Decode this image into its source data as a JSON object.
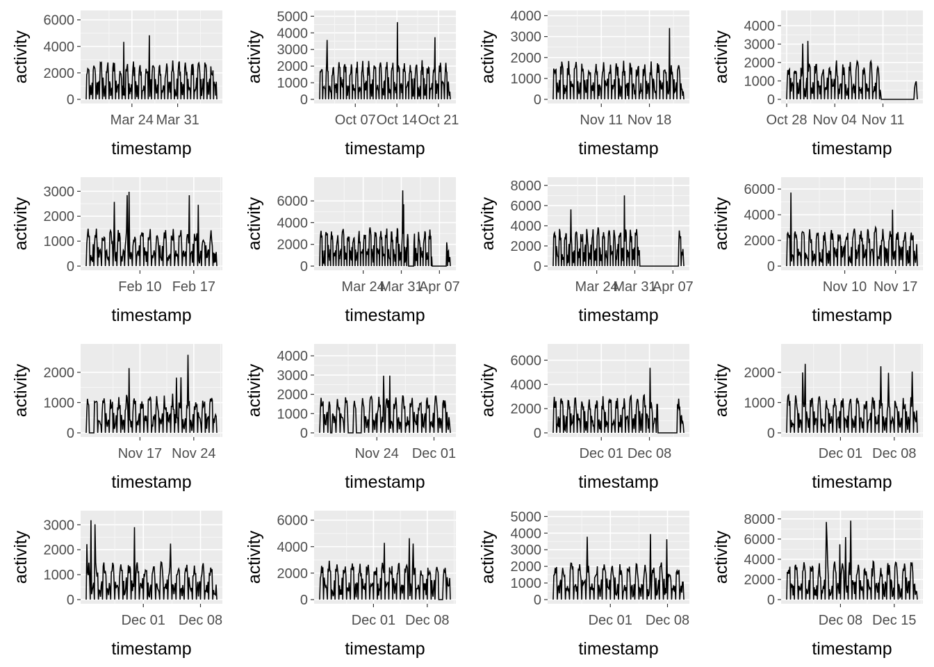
{
  "chart_data": [
    {
      "type": "bar",
      "xlabel": "timestamp",
      "ylabel": "activity",
      "x_ticks": [
        "Mar 24",
        "Mar 31"
      ],
      "y_ticks": [
        0,
        2000,
        4000,
        6000
      ],
      "ylim": [
        0,
        6400
      ],
      "x_range_days": [
        "2019-03-17",
        "2019-04-06"
      ],
      "gap_days": []
    },
    {
      "type": "bar",
      "xlabel": "timestamp",
      "ylabel": "activity",
      "x_ticks": [
        "Oct 07",
        "Oct 14",
        "Oct 21"
      ],
      "y_ticks": [
        0,
        1000,
        2000,
        3000,
        4000,
        5000
      ],
      "ylim": [
        0,
        5100
      ],
      "x_range_days": [
        "2018-10-01",
        "2018-10-23"
      ],
      "gap_days": []
    },
    {
      "type": "bar",
      "xlabel": "timestamp",
      "ylabel": "activity",
      "x_ticks": [
        "Nov 11",
        "Nov 18"
      ],
      "y_ticks": [
        0,
        1000,
        2000,
        3000,
        4000
      ],
      "ylim": [
        0,
        4050
      ],
      "x_range_days": [
        "2018-11-04",
        "2018-11-23"
      ],
      "gap_days": []
    },
    {
      "type": "bar",
      "xlabel": "timestamp",
      "ylabel": "activity",
      "x_ticks": [
        "Oct 28",
        "Nov 04",
        "Nov 11"
      ],
      "y_ticks": [
        0,
        1000,
        2000,
        3000,
        4000
      ],
      "ylim": [
        0,
        4600
      ],
      "x_range_days": [
        "2018-10-28",
        "2018-11-16"
      ],
      "gap_days": [
        [
          0.72,
          0.97
        ]
      ]
    },
    {
      "type": "bar",
      "xlabel": "timestamp",
      "ylabel": "activity",
      "x_ticks": [
        "Feb 10",
        "Feb 17"
      ],
      "y_ticks": [
        0,
        1000,
        2000,
        3000
      ],
      "ylim": [
        0,
        3400
      ],
      "x_range_days": [
        "2019-02-03",
        "2019-02-20"
      ],
      "gap_days": []
    },
    {
      "type": "bar",
      "xlabel": "timestamp",
      "ylabel": "activity",
      "x_ticks": [
        "Mar 24",
        "Mar 31",
        "Apr 07"
      ],
      "y_ticks": [
        0,
        2000,
        4000,
        6000
      ],
      "ylim": [
        0,
        7800
      ],
      "x_range_days": [
        "2019-03-16",
        "2019-04-09"
      ],
      "gap_days": [
        [
          0.68,
          0.72
        ],
        [
          0.86,
          0.97
        ]
      ]
    },
    {
      "type": "bar",
      "xlabel": "timestamp",
      "ylabel": "activity",
      "x_ticks": [
        "Mar 24",
        "Mar 31",
        "Apr 07"
      ],
      "y_ticks": [
        0,
        2000,
        4000,
        6000,
        8000
      ],
      "ylim": [
        0,
        8400
      ],
      "x_range_days": [
        "2019-03-16",
        "2019-04-09"
      ],
      "gap_days": [
        [
          0.66,
          0.96
        ]
      ]
    },
    {
      "type": "bar",
      "xlabel": "timestamp",
      "ylabel": "activity",
      "x_ticks": [
        "Nov 10",
        "Nov 17"
      ],
      "y_ticks": [
        0,
        2000,
        4000,
        6000
      ],
      "ylim": [
        0,
        6600
      ],
      "x_range_days": [
        "2018-11-02",
        "2018-11-20"
      ],
      "gap_days": []
    },
    {
      "type": "bar",
      "xlabel": "timestamp",
      "ylabel": "activity",
      "x_ticks": [
        "Nov 17",
        "Nov 24"
      ],
      "y_ticks": [
        0,
        1000,
        2000
      ],
      "ylim": [
        0,
        2800
      ],
      "x_range_days": [
        "2018-11-10",
        "2018-11-27"
      ],
      "gap_days": [
        [
          0.02,
          0.06
        ]
      ]
    },
    {
      "type": "bar",
      "xlabel": "timestamp",
      "ylabel": "activity",
      "x_ticks": [
        "Nov 24",
        "Dec 01"
      ],
      "y_ticks": [
        0,
        1000,
        2000,
        3000,
        4000
      ],
      "ylim": [
        0,
        4400
      ],
      "x_range_days": [
        "2018-11-17",
        "2018-12-03"
      ],
      "gap_days": [
        [
          0.08,
          0.09
        ],
        [
          0.22,
          0.26
        ],
        [
          0.28,
          0.32
        ]
      ]
    },
    {
      "type": "bar",
      "xlabel": "timestamp",
      "ylabel": "activity",
      "x_ticks": [
        "Dec 01",
        "Dec 08"
      ],
      "y_ticks": [
        0,
        2000,
        4000,
        6000
      ],
      "ylim": [
        0,
        7000
      ],
      "x_range_days": [
        "2018-11-24",
        "2018-12-13"
      ],
      "gap_days": [
        [
          0.8,
          0.95
        ]
      ]
    },
    {
      "type": "bar",
      "xlabel": "timestamp",
      "ylabel": "activity",
      "x_ticks": [
        "Dec 01",
        "Dec 08"
      ],
      "y_ticks": [
        0,
        1000,
        2000
      ],
      "ylim": [
        0,
        2800
      ],
      "x_range_days": [
        "2018-11-24",
        "2018-12-11"
      ],
      "gap_days": []
    },
    {
      "type": "bar",
      "xlabel": "timestamp",
      "ylabel": "activity",
      "x_ticks": [
        "Dec 01",
        "Dec 08"
      ],
      "y_ticks": [
        0,
        1000,
        2000,
        3000
      ],
      "ylim": [
        0,
        3400
      ],
      "x_range_days": [
        "2018-11-24",
        "2018-12-10"
      ],
      "gap_days": []
    },
    {
      "type": "bar",
      "xlabel": "timestamp",
      "ylabel": "activity",
      "x_ticks": [
        "Dec 01",
        "Dec 08"
      ],
      "y_ticks": [
        0,
        2000,
        4000,
        6000
      ],
      "ylim": [
        0,
        6400
      ],
      "x_range_days": [
        "2018-11-24",
        "2018-12-11"
      ],
      "gap_days": [
        [
          0.91,
          0.94
        ]
      ]
    },
    {
      "type": "bar",
      "xlabel": "timestamp",
      "ylabel": "activity",
      "x_ticks": [
        "Dec 01",
        "Dec 08"
      ],
      "y_ticks": [
        0,
        1000,
        2000,
        3000,
        4000,
        5000
      ],
      "ylim": [
        0,
        5100
      ],
      "x_range_days": [
        "2018-11-24",
        "2018-12-10"
      ],
      "gap_days": []
    },
    {
      "type": "bar",
      "xlabel": "timestamp",
      "ylabel": "activity",
      "x_ticks": [
        "Dec 08",
        "Dec 15"
      ],
      "y_ticks": [
        0,
        2000,
        4000,
        6000,
        8000
      ],
      "ylim": [
        0,
        8400
      ],
      "x_range_days": [
        "2018-12-01",
        "2018-12-18"
      ],
      "gap_days": []
    }
  ]
}
